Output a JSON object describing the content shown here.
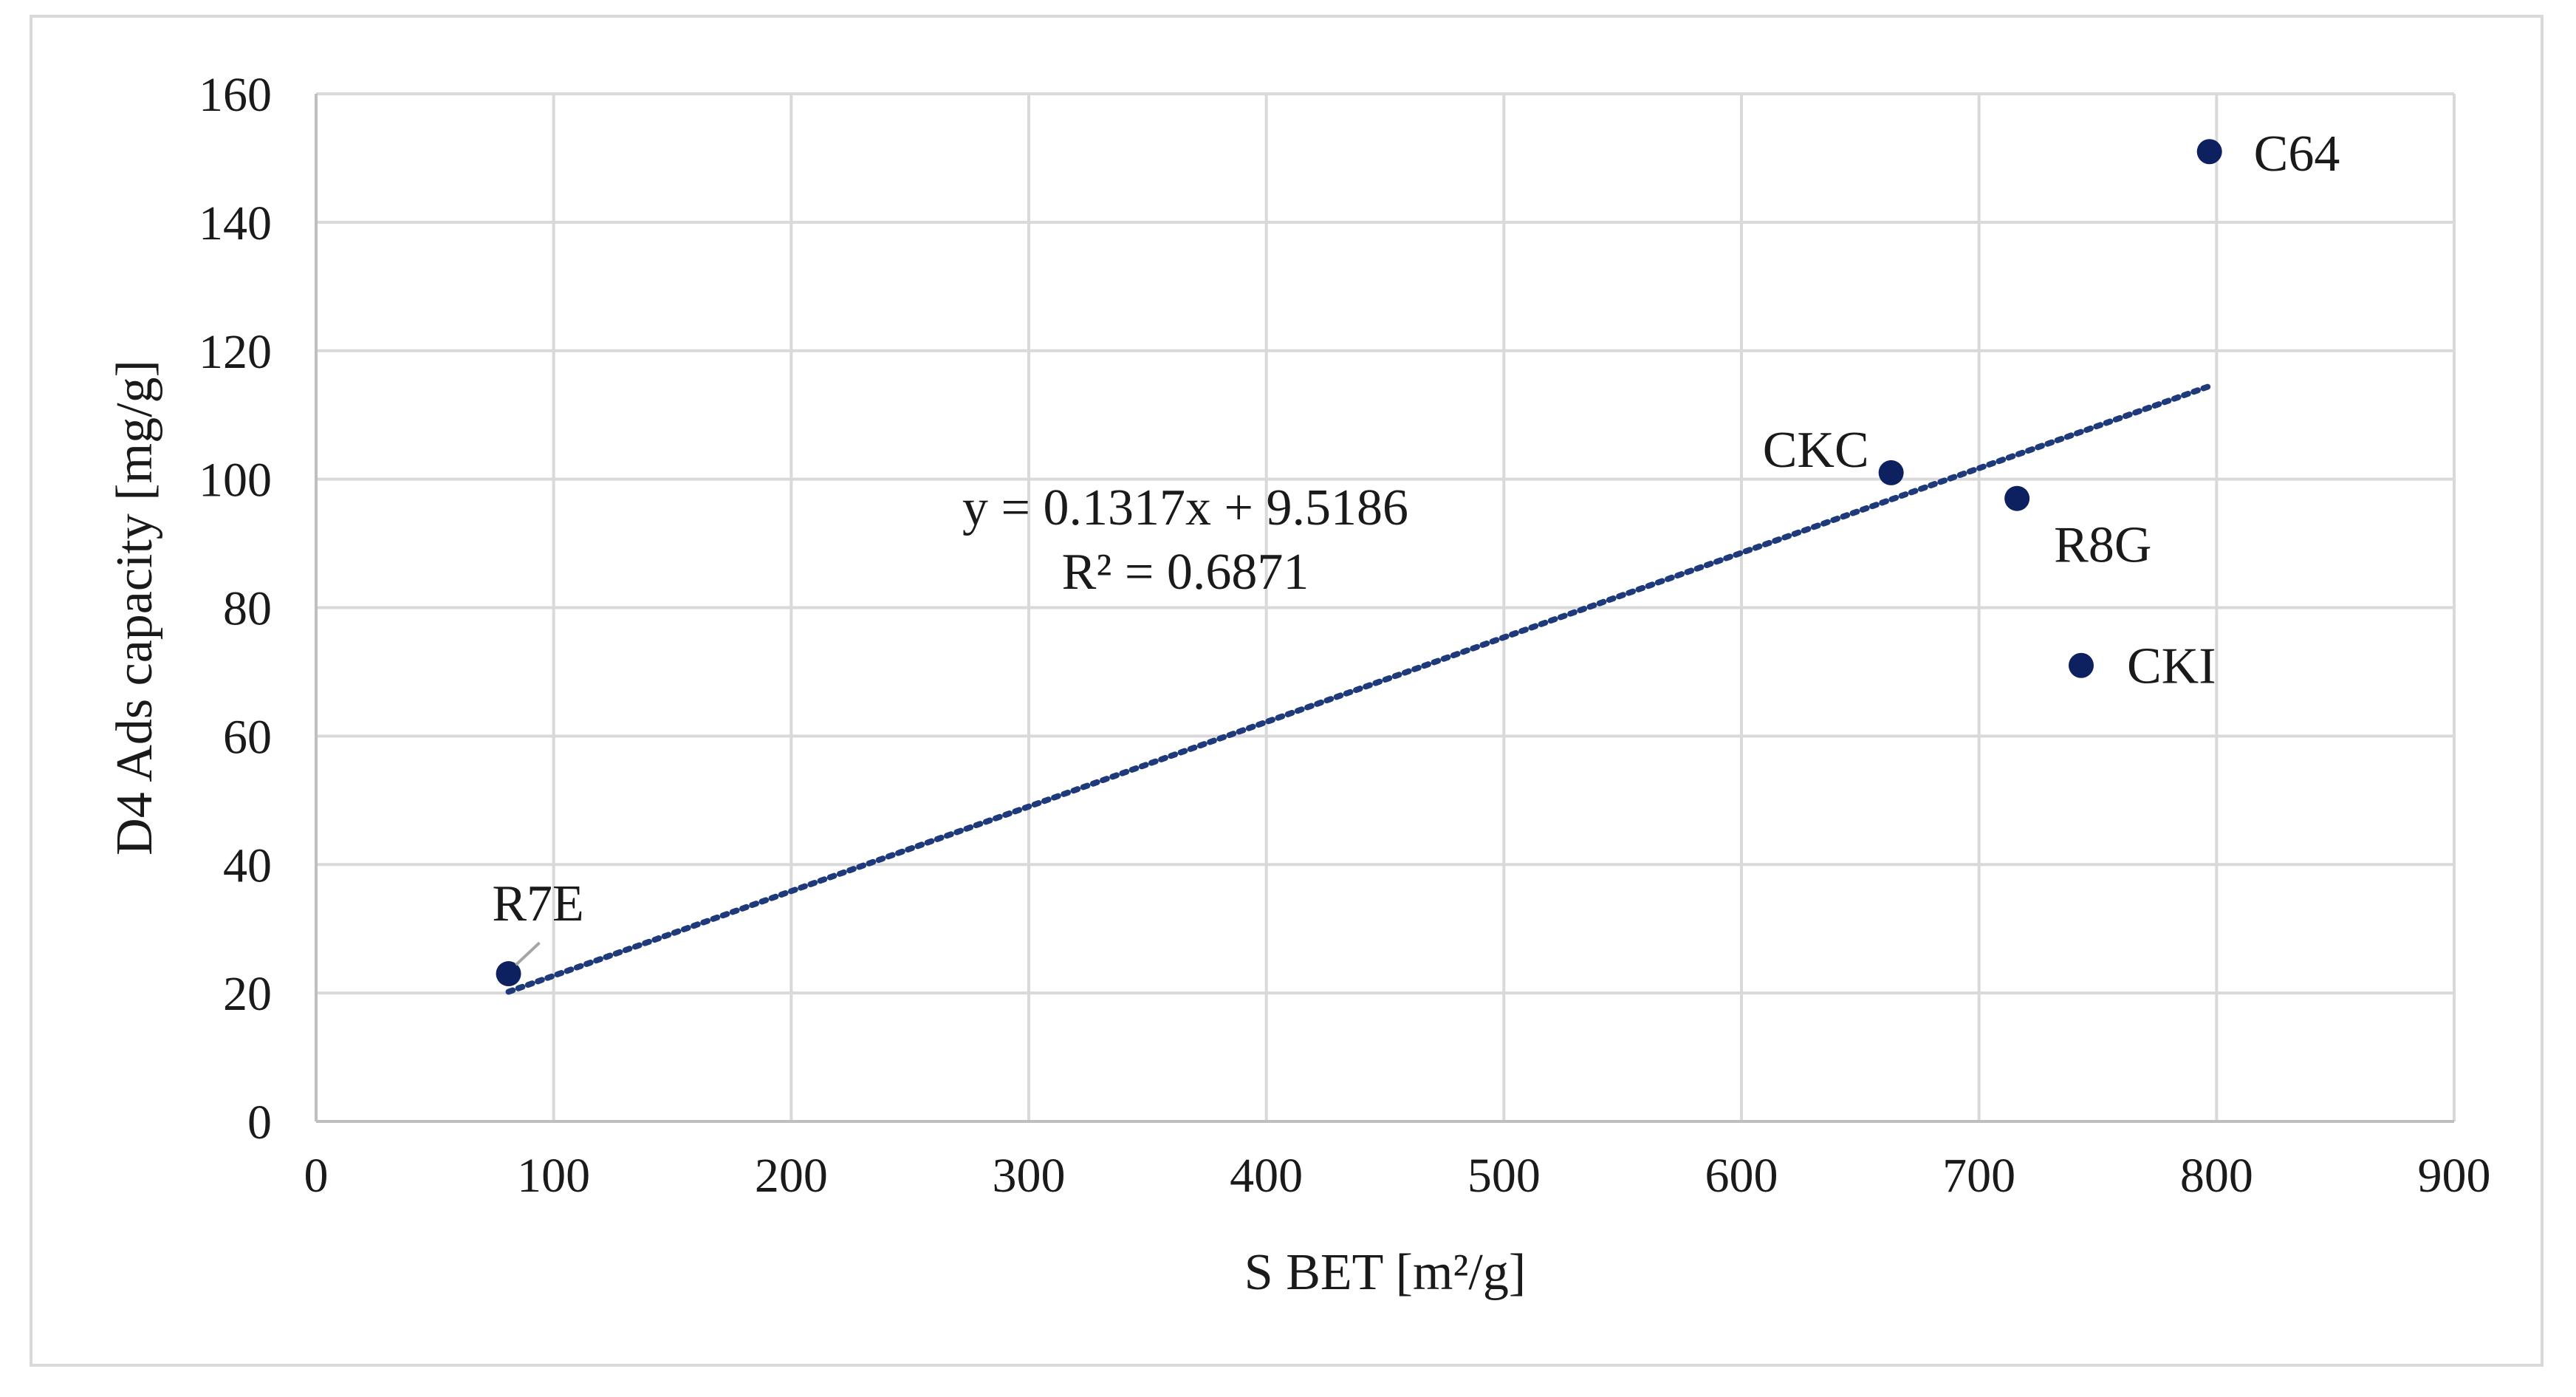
{
  "chart_data": {
    "type": "scatter",
    "xlabel": "S BET [m²/g]",
    "ylabel": "D4 Ads capacity [mg/g]",
    "xlim": [
      0,
      900
    ],
    "ylim": [
      0,
      160
    ],
    "x_ticks": [
      0,
      100,
      200,
      300,
      400,
      500,
      600,
      700,
      800,
      900
    ],
    "y_ticks": [
      0,
      20,
      40,
      60,
      80,
      100,
      120,
      140,
      160
    ],
    "grid": true,
    "legend": "none",
    "series": [
      {
        "points": [
          {
            "label": "R7E",
            "x": 81,
            "y": 23
          },
          {
            "label": "CKC",
            "x": 663,
            "y": 101
          },
          {
            "label": "R8G",
            "x": 716,
            "y": 97
          },
          {
            "label": "CKI",
            "x": 743,
            "y": 71
          },
          {
            "label": "C64",
            "x": 797,
            "y": 151
          }
        ]
      }
    ],
    "trendline": {
      "type": "linear",
      "slope": 0.1317,
      "intercept": 9.5186,
      "x_range": [
        81,
        797
      ],
      "equation": "y = 0.1317x + 9.5186",
      "r_squared": "R² = 0.6871"
    },
    "colors": {
      "marker": "#0d2060",
      "trendline": "#1f3a7a",
      "grid": "#d9d9d9",
      "axis": "#bfbfbf"
    }
  }
}
